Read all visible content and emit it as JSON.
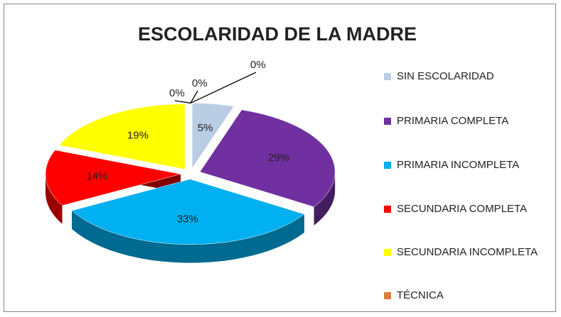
{
  "chart_data": {
    "type": "pie3d",
    "title": "ESCOLARIDAD DE LA MADRE",
    "categories": [
      "SIN ESCOLARIDAD",
      "PRIMARIA COMPLETA",
      "PRIMARIA INCOMPLETA",
      "SECUNDARIA COMPLETA",
      "SECUNDARIA INCOMPLETA",
      "TÉCNICA",
      null,
      null
    ],
    "values": [
      5,
      29,
      33,
      14,
      19,
      0,
      0,
      0
    ],
    "value_labels": [
      "5%",
      "29%",
      "33%",
      "14%",
      "19%",
      "0%",
      "0%",
      "0%"
    ],
    "colors": [
      "#b9cde5",
      "#7030a0",
      "#00b0f0",
      "#ff0000",
      "#ffff00",
      "#e07b39",
      "#8064a2",
      "#4bacc6"
    ],
    "legend": "right"
  }
}
